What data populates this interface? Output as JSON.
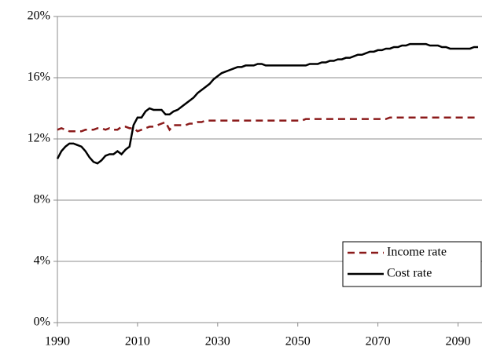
{
  "chart_data": {
    "type": "line",
    "x": [
      1990,
      1991,
      1992,
      1993,
      1994,
      1995,
      1996,
      1997,
      1998,
      1999,
      2000,
      2001,
      2002,
      2003,
      2004,
      2005,
      2006,
      2007,
      2008,
      2009,
      2010,
      2011,
      2012,
      2013,
      2014,
      2015,
      2016,
      2017,
      2018,
      2019,
      2020,
      2021,
      2022,
      2023,
      2024,
      2025,
      2026,
      2027,
      2028,
      2029,
      2030,
      2031,
      2032,
      2033,
      2034,
      2035,
      2036,
      2037,
      2038,
      2039,
      2040,
      2041,
      2042,
      2043,
      2044,
      2045,
      2046,
      2047,
      2048,
      2049,
      2050,
      2051,
      2052,
      2053,
      2054,
      2055,
      2056,
      2057,
      2058,
      2059,
      2060,
      2061,
      2062,
      2063,
      2064,
      2065,
      2066,
      2067,
      2068,
      2069,
      2070,
      2071,
      2072,
      2073,
      2074,
      2075,
      2076,
      2077,
      2078,
      2079,
      2080,
      2081,
      2082,
      2083,
      2084,
      2085,
      2086,
      2087,
      2088,
      2089,
      2090,
      2091,
      2092,
      2093,
      2094,
      2095
    ],
    "series": [
      {
        "name": "Income rate",
        "color": "#8b1a1a",
        "style": "dashed",
        "values": [
          12.6,
          12.7,
          12.6,
          12.5,
          12.5,
          12.5,
          12.5,
          12.6,
          12.6,
          12.6,
          12.7,
          12.7,
          12.6,
          12.7,
          12.6,
          12.6,
          12.8,
          12.8,
          12.7,
          12.7,
          12.5,
          12.6,
          12.7,
          12.8,
          12.8,
          12.9,
          13.0,
          13.1,
          12.6,
          12.9,
          12.9,
          12.9,
          12.9,
          13.0,
          13.0,
          13.1,
          13.1,
          13.2,
          13.2,
          13.2,
          13.2,
          13.2,
          13.2,
          13.2,
          13.2,
          13.2,
          13.2,
          13.2,
          13.2,
          13.2,
          13.2,
          13.2,
          13.2,
          13.2,
          13.2,
          13.2,
          13.2,
          13.2,
          13.2,
          13.2,
          13.2,
          13.2,
          13.3,
          13.3,
          13.3,
          13.3,
          13.3,
          13.3,
          13.3,
          13.3,
          13.3,
          13.3,
          13.3,
          13.3,
          13.3,
          13.3,
          13.3,
          13.3,
          13.3,
          13.3,
          13.3,
          13.3,
          13.3,
          13.4,
          13.4,
          13.4,
          13.4,
          13.4,
          13.4,
          13.4,
          13.4,
          13.4,
          13.4,
          13.4,
          13.4,
          13.4,
          13.4,
          13.4,
          13.4,
          13.4,
          13.4,
          13.4,
          13.4,
          13.4,
          13.4,
          13.4
        ]
      },
      {
        "name": "Cost rate",
        "color": "#000000",
        "style": "solid",
        "values": [
          10.7,
          11.2,
          11.5,
          11.7,
          11.7,
          11.6,
          11.5,
          11.2,
          10.8,
          10.5,
          10.4,
          10.6,
          10.9,
          11.0,
          11.0,
          11.2,
          11.0,
          11.3,
          11.5,
          12.9,
          13.4,
          13.4,
          13.8,
          14.0,
          13.9,
          13.9,
          13.9,
          13.6,
          13.6,
          13.8,
          13.9,
          14.1,
          14.3,
          14.5,
          14.7,
          15.0,
          15.2,
          15.4,
          15.6,
          15.9,
          16.1,
          16.3,
          16.4,
          16.5,
          16.6,
          16.7,
          16.7,
          16.8,
          16.8,
          16.8,
          16.9,
          16.9,
          16.8,
          16.8,
          16.8,
          16.8,
          16.8,
          16.8,
          16.8,
          16.8,
          16.8,
          16.8,
          16.8,
          16.9,
          16.9,
          16.9,
          17.0,
          17.0,
          17.1,
          17.1,
          17.2,
          17.2,
          17.3,
          17.3,
          17.4,
          17.5,
          17.5,
          17.6,
          17.7,
          17.7,
          17.8,
          17.8,
          17.9,
          17.9,
          18.0,
          18.0,
          18.1,
          18.1,
          18.2,
          18.2,
          18.2,
          18.2,
          18.2,
          18.1,
          18.1,
          18.1,
          18.0,
          18.0,
          17.9,
          17.9,
          17.9,
          17.9,
          17.9,
          17.9,
          18.0,
          18.0
        ]
      }
    ],
    "xlim": [
      1990,
      2095
    ],
    "xticks": [
      1990,
      2010,
      2030,
      2050,
      2070,
      2090
    ],
    "ylim": [
      0,
      20
    ],
    "yticks": [
      {
        "value": 0,
        "label": "0%"
      },
      {
        "value": 4,
        "label": "4%"
      },
      {
        "value": 8,
        "label": "8%"
      },
      {
        "value": 12,
        "label": "12%"
      },
      {
        "value": 16,
        "label": "16%"
      },
      {
        "value": 20,
        "label": "20%"
      }
    ],
    "grid": true,
    "legend": "lower right"
  }
}
